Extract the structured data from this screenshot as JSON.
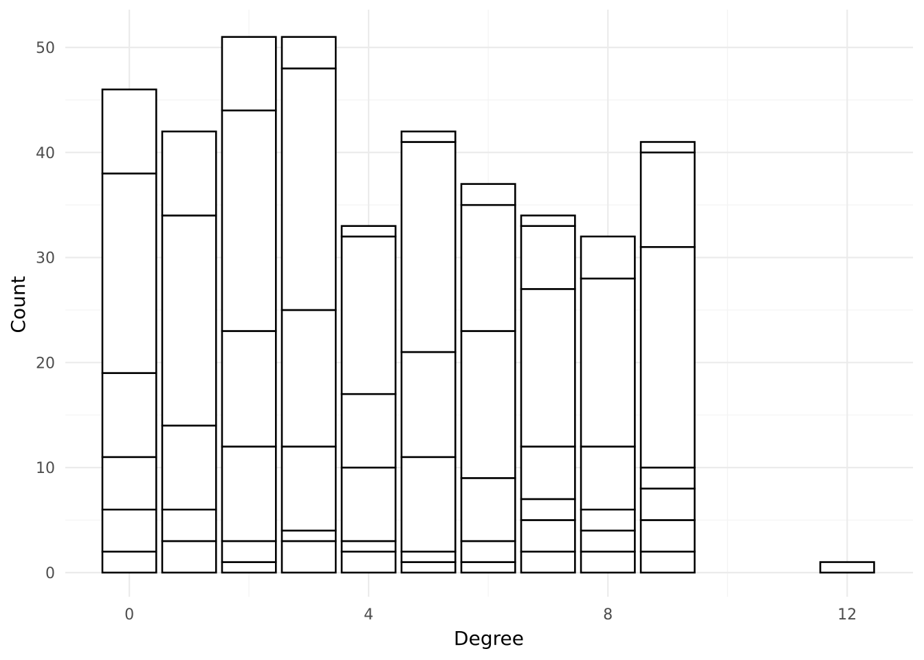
{
  "chart_data": {
    "type": "bar",
    "stacked": true,
    "xlabel": "Degree",
    "ylabel": "Count",
    "xlim": [
      -1.07,
      13.1
    ],
    "ylim": [
      -2.3,
      53.6
    ],
    "x_ticks": [
      0,
      4,
      8,
      12
    ],
    "y_ticks": [
      0,
      10,
      20,
      30,
      40,
      50
    ],
    "bar_fill": "#ffffff",
    "bar_outline": "#000000",
    "grid": true,
    "legend": "none",
    "bars": [
      {
        "x": 0,
        "cumulative": [
          2,
          6,
          11,
          19,
          38,
          46
        ]
      },
      {
        "x": 1,
        "cumulative": [
          3,
          6,
          14,
          34,
          42
        ]
      },
      {
        "x": 2,
        "cumulative": [
          1,
          3,
          12,
          23,
          44,
          51
        ]
      },
      {
        "x": 3,
        "cumulative": [
          3,
          4,
          12,
          25,
          48,
          51
        ]
      },
      {
        "x": 4,
        "cumulative": [
          2,
          3,
          10,
          17,
          32,
          33
        ]
      },
      {
        "x": 5,
        "cumulative": [
          1,
          2,
          11,
          21,
          41,
          42
        ]
      },
      {
        "x": 6,
        "cumulative": [
          1,
          3,
          9,
          23,
          35,
          37
        ]
      },
      {
        "x": 7,
        "cumulative": [
          2,
          5,
          7,
          12,
          27,
          33,
          34
        ]
      },
      {
        "x": 8,
        "cumulative": [
          2,
          4,
          6,
          12,
          28,
          32
        ]
      },
      {
        "x": 9,
        "cumulative": [
          2,
          5,
          8,
          10,
          31,
          40,
          41
        ]
      },
      {
        "x": 12,
        "cumulative": [
          1
        ]
      }
    ]
  }
}
